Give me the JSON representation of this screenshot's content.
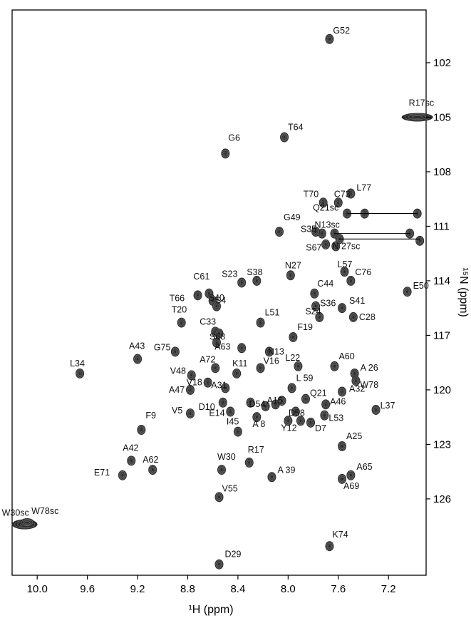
{
  "chart_data": {
    "type": "scatter",
    "title": "",
    "xlabel": "¹H (ppm)",
    "ylabel": "¹⁵N (ppm)",
    "xlim": [
      10.2,
      6.9
    ],
    "ylim": [
      130.2,
      99.1
    ],
    "x_ticks": [
      10.0,
      9.6,
      9.2,
      8.8,
      8.4,
      8.0,
      7.6,
      7.2
    ],
    "x_tick_labels": [
      "10.0",
      "9.6",
      "9.2",
      "8.8",
      "8.4",
      "8.0",
      "7.6",
      "7.2"
    ],
    "y_ticks": [
      102,
      105,
      108,
      111,
      114,
      117,
      120,
      123,
      126
    ],
    "y_tick_labels": [
      "102",
      "105",
      "108",
      "111",
      "114",
      "117",
      "120",
      "123",
      "126"
    ],
    "grid": false,
    "legend": "none",
    "colors": {
      "contour": "#1a1a1a",
      "peak_fill": "#2b2b2b",
      "frame": "#000000"
    },
    "peaks": [
      {
        "label": "G52",
        "x": 7.67,
        "y": 100.7
      },
      {
        "label": "R17sc",
        "x": 6.97,
        "y": 105.0
      },
      {
        "label": "T64",
        "x": 8.03,
        "y": 106.1
      },
      {
        "label": "G6",
        "x": 8.5,
        "y": 107.0
      },
      {
        "label": "L77",
        "x": 7.5,
        "y": 109.2
      },
      {
        "label": "T70",
        "x": 7.72,
        "y": 109.7
      },
      {
        "label": "C73",
        "x": 7.6,
        "y": 109.7
      },
      {
        "label": "Q21sc",
        "x": 7.53,
        "y": 110.3
      },
      {
        "label": "G49",
        "x": 8.07,
        "y": 111.3
      },
      {
        "label": "S35",
        "x": 7.73,
        "y": 111.4
      },
      {
        "label": "N13sc",
        "x": 7.63,
        "y": 111.4
      },
      {
        "label": "S67",
        "x": 7.62,
        "y": 112.1
      },
      {
        "label": "N 27sc",
        "x": 7.59,
        "y": 111.7
      },
      {
        "label": "L57",
        "x": 7.55,
        "y": 113.5
      },
      {
        "label": "N27",
        "x": 7.98,
        "y": 113.7
      },
      {
        "label": "C76",
        "x": 7.5,
        "y": 114.0
      },
      {
        "label": "S23",
        "x": 8.37,
        "y": 114.1
      },
      {
        "label": "S38",
        "x": 8.25,
        "y": 114.0
      },
      {
        "label": "E50",
        "x": 7.05,
        "y": 114.6
      },
      {
        "label": "C61",
        "x": 8.63,
        "y": 114.7
      },
      {
        "label": "T66",
        "x": 8.72,
        "y": 114.8
      },
      {
        "label": "S40",
        "x": 8.6,
        "y": 115.1
      },
      {
        "label": "C44",
        "x": 7.79,
        "y": 114.7
      },
      {
        "label": "S4",
        "x": 8.57,
        "y": 115.4
      },
      {
        "label": "S36",
        "x": 7.78,
        "y": 115.4
      },
      {
        "label": "S41",
        "x": 7.57,
        "y": 115.5
      },
      {
        "label": "S24",
        "x": 7.75,
        "y": 116.0
      },
      {
        "label": "C28",
        "x": 7.48,
        "y": 116.0
      },
      {
        "label": "T20",
        "x": 8.85,
        "y": 116.3
      },
      {
        "label": "L51",
        "x": 8.22,
        "y": 116.3
      },
      {
        "label": "C33",
        "x": 8.58,
        "y": 116.8
      },
      {
        "label": "F19",
        "x": 7.96,
        "y": 117.1
      },
      {
        "label": "S68",
        "x": 8.57,
        "y": 117.4
      },
      {
        "label": "A63",
        "x": 8.37,
        "y": 117.7
      },
      {
        "label": "G75",
        "x": 8.9,
        "y": 117.9
      },
      {
        "label": "N13",
        "x": 8.15,
        "y": 117.9
      },
      {
        "label": "A43",
        "x": 9.2,
        "y": 118.3
      },
      {
        "label": "A72",
        "x": 8.58,
        "y": 118.8
      },
      {
        "label": "L22",
        "x": 7.92,
        "y": 118.7
      },
      {
        "label": "A60",
        "x": 7.63,
        "y": 118.7
      },
      {
        "label": "V16",
        "x": 8.22,
        "y": 118.8
      },
      {
        "label": "K11",
        "x": 8.41,
        "y": 119.1
      },
      {
        "label": "V48",
        "x": 8.77,
        "y": 119.2
      },
      {
        "label": "L34",
        "x": 9.66,
        "y": 119.1
      },
      {
        "label": "A 26",
        "x": 7.47,
        "y": 119.1
      },
      {
        "label": "V18",
        "x": 8.64,
        "y": 119.6
      },
      {
        "label": "W78",
        "x": 7.46,
        "y": 119.5
      },
      {
        "label": "A31",
        "x": 8.5,
        "y": 119.9
      },
      {
        "label": "A47",
        "x": 8.78,
        "y": 120.0
      },
      {
        "label": "L 59",
        "x": 7.97,
        "y": 119.9
      },
      {
        "label": "Q21",
        "x": 7.86,
        "y": 120.5
      },
      {
        "label": "A32",
        "x": 7.57,
        "y": 120.1
      },
      {
        "label": "D10",
        "x": 8.52,
        "y": 120.7
      },
      {
        "label": "D54",
        "x": 8.3,
        "y": 120.7
      },
      {
        "label": "A15",
        "x": 8.18,
        "y": 120.9
      },
      {
        "label": "A46",
        "x": 7.7,
        "y": 120.8
      },
      {
        "label": "L37",
        "x": 7.3,
        "y": 121.1
      },
      {
        "label": "V5",
        "x": 8.78,
        "y": 121.3
      },
      {
        "label": "E14",
        "x": 8.46,
        "y": 121.2
      },
      {
        "label": "D58",
        "x": 7.94,
        "y": 121.2
      },
      {
        "label": "L53",
        "x": 7.71,
        "y": 121.4
      },
      {
        "label": "I45",
        "x": 8.4,
        "y": 122.3
      },
      {
        "label": "A 8",
        "x": 8.25,
        "y": 121.5
      },
      {
        "label": "Y12",
        "x": 8.0,
        "y": 121.7
      },
      {
        "label": "D7",
        "x": 7.82,
        "y": 121.8
      },
      {
        "label": "F9",
        "x": 9.17,
        "y": 122.2
      },
      {
        "label": "A25",
        "x": 7.57,
        "y": 123.1
      },
      {
        "label": "A42",
        "x": 9.25,
        "y": 123.9
      },
      {
        "label": "W30",
        "x": 8.53,
        "y": 124.4
      },
      {
        "label": "R17",
        "x": 8.31,
        "y": 124.0
      },
      {
        "label": "A62",
        "x": 9.08,
        "y": 124.4
      },
      {
        "label": "A65",
        "x": 7.5,
        "y": 124.7
      },
      {
        "label": "E71",
        "x": 9.32,
        "y": 124.7
      },
      {
        "label": "A 39",
        "x": 8.13,
        "y": 124.8
      },
      {
        "label": "A69",
        "x": 7.57,
        "y": 124.9
      },
      {
        "label": "V55",
        "x": 8.55,
        "y": 125.9
      },
      {
        "label": "W30sc",
        "x": 10.1,
        "y": 127.4
      },
      {
        "label": "W78sc",
        "x": 10.08,
        "y": 127.3
      },
      {
        "label": "K74",
        "x": 7.67,
        "y": 128.6
      },
      {
        "label": "D29",
        "x": 8.55,
        "y": 129.6
      }
    ],
    "unlabeled_peaks": [
      {
        "x": 7.39,
        "y": 110.3
      },
      {
        "x": 6.97,
        "y": 110.3
      },
      {
        "x": 7.03,
        "y": 111.4
      },
      {
        "x": 6.95,
        "y": 111.8
      },
      {
        "x": 7.78,
        "y": 111.3
      },
      {
        "x": 7.7,
        "y": 112.0
      },
      {
        "x": 8.55,
        "y": 116.9
      },
      {
        "x": 8.1,
        "y": 120.8
      },
      {
        "x": 8.05,
        "y": 120.6
      },
      {
        "x": 7.9,
        "y": 121.7
      }
    ],
    "sidechain_pairs": [
      {
        "label": "Q21sc",
        "x1": 7.53,
        "x2": 6.97,
        "y": 110.3
      },
      {
        "label": "N13sc",
        "x1": 7.63,
        "x2": 7.03,
        "y": 111.4
      },
      {
        "label": "N 27sc",
        "x1": 7.59,
        "x2": 6.95,
        "y": 111.7
      }
    ]
  }
}
